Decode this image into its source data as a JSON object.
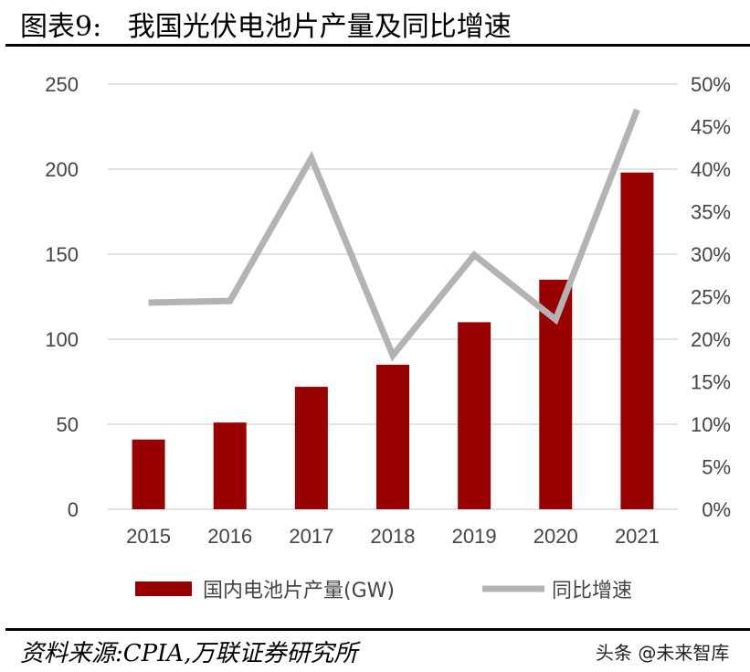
{
  "header": {
    "title": "图表9:   我国光伏电池片产量及同比增速"
  },
  "footer": {
    "source": "资料来源:CPIA,万联证券研究所",
    "watermark": "头条 @未来智库"
  },
  "chart_data": {
    "type": "bar+line",
    "categories": [
      "2015",
      "2016",
      "2017",
      "2018",
      "2019",
      "2020",
      "2021"
    ],
    "series": [
      {
        "name": "国内电池片产量(GW)",
        "type": "bar",
        "axis": "left",
        "color": "#990000",
        "values": [
          41,
          51,
          72,
          85,
          110,
          135,
          198
        ]
      },
      {
        "name": "同比增速",
        "type": "line",
        "axis": "right",
        "color": "#b3b3b3",
        "values": [
          24.3,
          24.5,
          41.3,
          18.1,
          29.9,
          22.3,
          47.0
        ]
      }
    ],
    "left_axis": {
      "ylim": [
        0,
        250
      ],
      "ticks": [
        "0",
        "50",
        "100",
        "150",
        "200",
        "250"
      ]
    },
    "right_axis": {
      "ylim": [
        0,
        50
      ],
      "ticks": [
        "0%",
        "5%",
        "10%",
        "15%",
        "20%",
        "25%",
        "30%",
        "35%",
        "40%",
        "45%",
        "50%"
      ]
    },
    "grid": true,
    "legend": "bottom"
  }
}
